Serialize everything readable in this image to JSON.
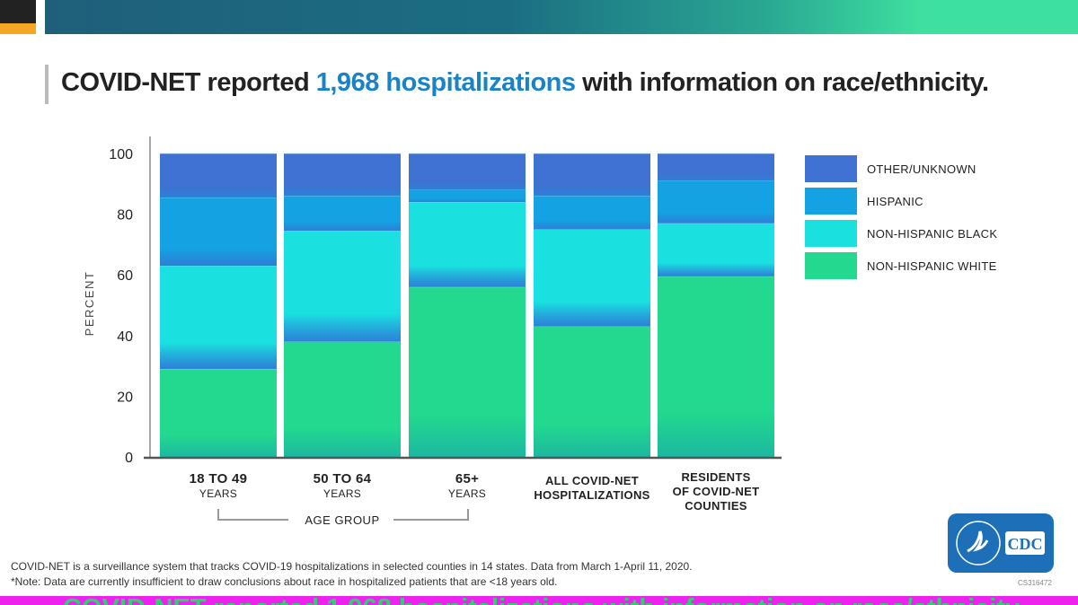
{
  "title": {
    "prefix": "COVID-NET reported",
    "highlight": "1,968 hospitalizations",
    "suffix": "with information on race/ethnicity."
  },
  "chart_data": {
    "type": "bar",
    "stacked": true,
    "categories": [
      "18 to 49 years",
      "50 to 64 years",
      "65+ years",
      "All COVID-NET hospitalizations",
      "Residents of COVID-NET counties"
    ],
    "category_labels": [
      {
        "line1": "18 TO 49",
        "line2": "YEARS"
      },
      {
        "line1": "50 TO 64",
        "line2": "YEARS"
      },
      {
        "line1": "65+",
        "line2": "YEARS"
      },
      {
        "line1": "ALL COVID-NET",
        "line2": "HOSPITALIZATIONS"
      },
      {
        "line1": "RESIDENTS",
        "line2": "OF COVID-NET",
        "line3": "COUNTIES"
      }
    ],
    "group_label": "AGE GROUP",
    "ylabel": "PERCENT",
    "ylim": [
      0,
      100
    ],
    "yticks": [
      0,
      20,
      40,
      60,
      80,
      100
    ],
    "legend_position": "right",
    "series": [
      {
        "name": "NON-HISPANIC WHITE",
        "color": "#22d98f",
        "values": [
          29,
          38,
          56,
          43,
          59.5
        ]
      },
      {
        "name": "NON-HISPANIC BLACK",
        "color": "#1ae0e0",
        "values": [
          34,
          36.5,
          28,
          32,
          17.5
        ]
      },
      {
        "name": "HISPANIC",
        "color": "#14a2e2",
        "values": [
          22.5,
          11.5,
          4,
          11,
          14
        ]
      },
      {
        "name": "OTHER/UNKNOWN",
        "color": "#3f72d2",
        "values": [
          14.5,
          14,
          12,
          14,
          9
        ]
      }
    ]
  },
  "footer": {
    "line1": "COVID-NET is a surveillance system that tracks COVID-19 hospitalizations in selected counties in 14 states. Data from March 1-April 11, 2020.",
    "line2": "*Note: Data are currently insufficient to draw conclusions about race in hospitalized patients that are <18 years old.",
    "code": "CS316472"
  },
  "logo": {
    "text": "CDC"
  }
}
